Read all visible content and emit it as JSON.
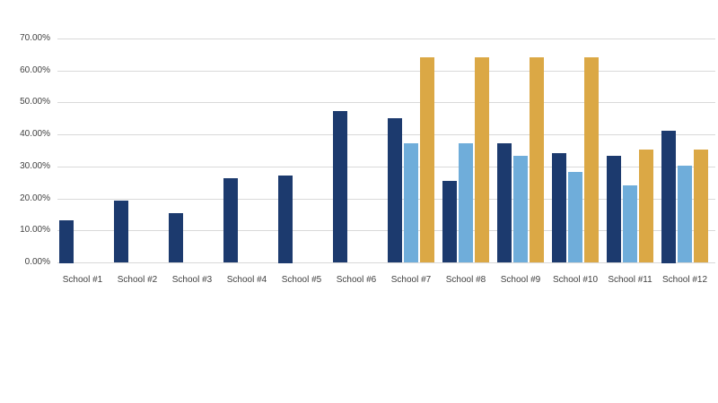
{
  "chart_data": {
    "type": "bar",
    "title": "",
    "xlabel": "",
    "ylabel": "",
    "grid": true,
    "legend": "none",
    "background": "#ffffff",
    "grid_color": "#d9d9d9",
    "axis_text_color": "#404040",
    "ylim": [
      0,
      70
    ],
    "ytick_step": 10,
    "ytick_labels": [
      "0.00%",
      "10.00%",
      "20.00%",
      "30.00%",
      "40.00%",
      "50.00%",
      "60.00%",
      "70.00%"
    ],
    "categories": [
      "School #1",
      "School #2",
      "School #3",
      "School #4",
      "School #5",
      "School #6",
      "School #7",
      "School #8",
      "School #9",
      "School #10",
      "School #11",
      "School #12"
    ],
    "series": [
      {
        "name": "series-1-navy",
        "color": "#1c3a6e",
        "values": [
          13.3,
          19.2,
          15.4,
          26.2,
          27.3,
          47.2,
          45.2,
          25.5,
          37.2,
          34.1,
          33.2,
          41.3
        ]
      },
      {
        "name": "series-2-light-blue",
        "color": "#6fadda",
        "values": [
          null,
          null,
          null,
          null,
          null,
          null,
          37.2,
          37.2,
          33.3,
          28.3,
          24.2,
          30.2
        ]
      },
      {
        "name": "series-3-gold",
        "color": "#dba845",
        "values": [
          null,
          null,
          null,
          null,
          null,
          null,
          64.0,
          64.0,
          64.0,
          64.0,
          35.2,
          35.2
        ]
      }
    ]
  }
}
